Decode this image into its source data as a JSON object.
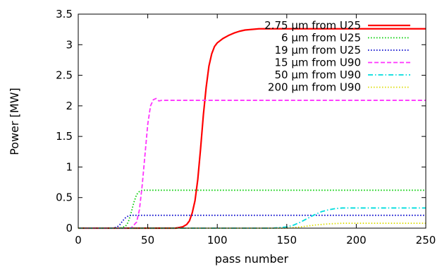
{
  "chart_data": {
    "type": "line",
    "title": "",
    "xlabel": "pass number",
    "ylabel": "Power [MW]",
    "xlim": [
      0,
      250
    ],
    "ylim": [
      0,
      3.5
    ],
    "xticks": [
      0,
      50,
      100,
      150,
      200,
      250
    ],
    "yticks": [
      0,
      0.5,
      1,
      1.5,
      2,
      2.5,
      3,
      3.5
    ],
    "xtick_labels": [
      "0",
      "50",
      "100",
      "150",
      "200",
      "250"
    ],
    "ytick_labels": [
      "0",
      "0.5",
      "1",
      "1.5",
      "2",
      "2.5",
      "3",
      "3.5"
    ],
    "grid": false,
    "legend_position": "top-right",
    "series": [
      {
        "name": "2.75 μm from U25",
        "color": "#ff0000",
        "dash": "solid",
        "x": [
          0,
          70,
          75,
          78,
          80,
          82,
          84,
          86,
          88,
          90,
          92,
          94,
          96,
          98,
          100,
          104,
          108,
          112,
          116,
          120,
          130,
          140,
          150,
          250
        ],
        "y": [
          0,
          0,
          0.02,
          0.06,
          0.12,
          0.25,
          0.45,
          0.8,
          1.3,
          1.85,
          2.3,
          2.65,
          2.85,
          2.97,
          3.03,
          3.1,
          3.15,
          3.19,
          3.22,
          3.24,
          3.26,
          3.26,
          3.26,
          3.26
        ]
      },
      {
        "name": "6 μm from U25",
        "color": "#00cc00",
        "dash": "dot",
        "x": [
          0,
          30,
          34,
          36,
          38,
          40,
          42,
          44,
          46,
          250
        ],
        "y": [
          0,
          0,
          0.03,
          0.1,
          0.25,
          0.42,
          0.55,
          0.6,
          0.62,
          0.62
        ]
      },
      {
        "name": "19 μm from U25",
        "color": "#0000cc",
        "dash": "dot",
        "x": [
          0,
          25,
          28,
          30,
          32,
          34,
          36,
          38,
          250
        ],
        "y": [
          0,
          0,
          0.02,
          0.06,
          0.12,
          0.17,
          0.2,
          0.21,
          0.21
        ]
      },
      {
        "name": "15 μm from U90",
        "color": "#ff33ff",
        "dash": "dash",
        "x": [
          0,
          38,
          42,
          44,
          46,
          48,
          50,
          52,
          54,
          56,
          58,
          60,
          250
        ],
        "y": [
          0,
          0,
          0.1,
          0.3,
          0.7,
          1.2,
          1.7,
          2.0,
          2.1,
          2.12,
          2.08,
          2.09,
          2.09
        ]
      },
      {
        "name": "50 μm from U90",
        "color": "#00dddd",
        "dash": "dashdot",
        "x": [
          0,
          140,
          150,
          155,
          160,
          165,
          170,
          175,
          180,
          185,
          190,
          250
        ],
        "y": [
          0,
          0,
          0.02,
          0.05,
          0.1,
          0.16,
          0.22,
          0.27,
          0.3,
          0.32,
          0.33,
          0.33
        ]
      },
      {
        "name": "200 μm from U90",
        "color": "#dddd00",
        "dash": "dot",
        "x": [
          0,
          150,
          160,
          170,
          180,
          190,
          250
        ],
        "y": [
          0,
          0,
          0.02,
          0.05,
          0.07,
          0.08,
          0.08
        ]
      }
    ]
  }
}
